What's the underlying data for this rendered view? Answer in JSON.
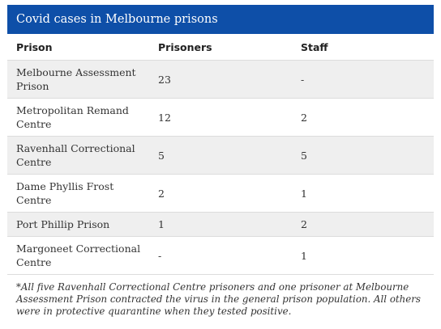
{
  "title": "Covid cases in Melbourne prisons",
  "columns": [
    "Prison",
    "Prisoners",
    "Staff"
  ],
  "rows": [
    {
      "prison": "Melbourne Assessment Prison",
      "prisoners": "23",
      "staff": "-"
    },
    {
      "prison": "Metropolitan Remand Centre",
      "prisoners": "12",
      "staff": "2"
    },
    {
      "prison": "Ravenhall Correctional Centre",
      "prisoners": "5",
      "staff": "5"
    },
    {
      "prison": "Dame Phyllis Frost Centre",
      "prisoners": "2",
      "staff": "1"
    },
    {
      "prison": "Port Phillip Prison",
      "prisoners": "1",
      "staff": "2"
    },
    {
      "prison": "Margoneet Correctional Centre",
      "prisoners": "-",
      "staff": "1"
    }
  ],
  "footnote": "*All five Ravenhall Correctional Centre prisoners and one prisoner at Melbourne Assessment Prison contracted the virus in the general prison population. All others were in protective quarantine when they tested positive.",
  "colors": {
    "header_bg": "#0e4fa8",
    "stripe": "#efefef"
  }
}
